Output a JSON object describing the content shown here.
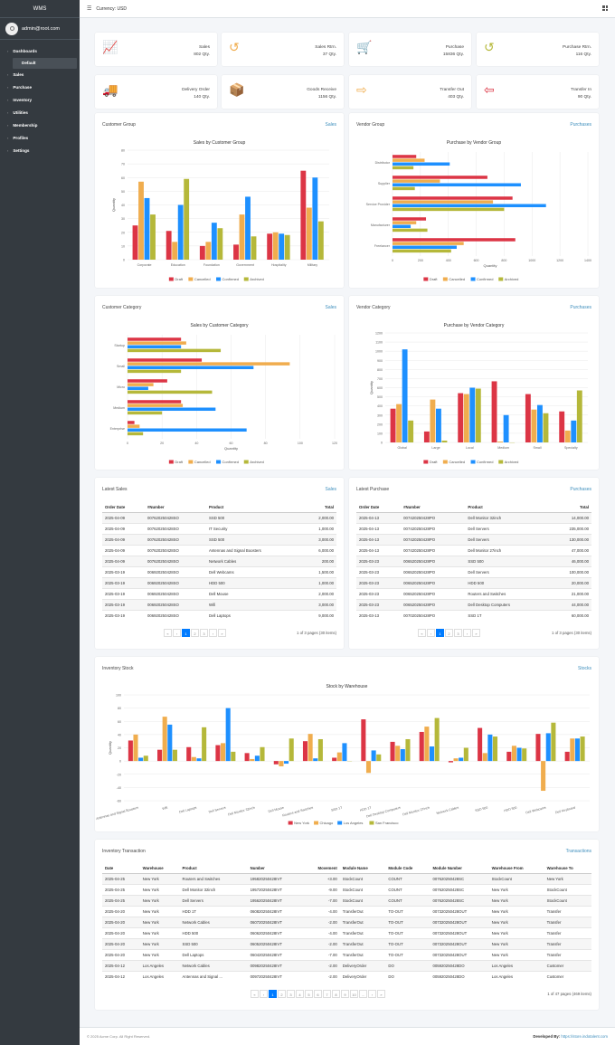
{
  "app": {
    "title": "WMS",
    "user": "admin@root.com"
  },
  "sidebar": {
    "items": [
      {
        "label": "Dashboards",
        "arrow": "›"
      },
      {
        "label": "Default",
        "sub": true
      },
      {
        "label": "Sales",
        "arrow": "‹"
      },
      {
        "label": "Purchase",
        "arrow": "‹"
      },
      {
        "label": "Inventory",
        "arrow": "‹"
      },
      {
        "label": "Utilities",
        "arrow": "‹"
      },
      {
        "label": "Membership",
        "arrow": "‹"
      },
      {
        "label": "Profiles",
        "arrow": "‹"
      },
      {
        "label": "Settings",
        "arrow": "‹"
      }
    ]
  },
  "topbar": {
    "currency": "Currency: USD"
  },
  "stats": [
    {
      "label": "Sales",
      "value": "802 Qty.",
      "icon": "chart-line-icon",
      "color": "#dc3545",
      "glyph": "📈"
    },
    {
      "label": "Sales Rtrn.",
      "value": "37 Qty.",
      "icon": "undo-icon",
      "color": "#f0ad4e",
      "glyph": "↺"
    },
    {
      "label": "Purchase",
      "value": "15836 Qty.",
      "icon": "cart-icon",
      "color": "#007bff",
      "glyph": "🛒"
    },
    {
      "label": "Purchase Rtrn.",
      "value": "116 Qty.",
      "icon": "undo-icon",
      "color": "#b5b83a",
      "glyph": "↺"
    },
    {
      "label": "Delivery Order",
      "value": "140 Qty.",
      "icon": "truck-icon",
      "color": "#b5b83a",
      "glyph": "🚚"
    },
    {
      "label": "Goods Receive",
      "value": "1156 Qty.",
      "icon": "boxes-icon",
      "color": "#007bff",
      "glyph": "📦"
    },
    {
      "label": "Transfer Out",
      "value": "403 Qty.",
      "icon": "sign-out-icon",
      "color": "#f0ad4e",
      "glyph": "⇨"
    },
    {
      "label": "Transfer In",
      "value": "90 Qty.",
      "icon": "sign-in-icon",
      "color": "#dc3545",
      "glyph": "⇦"
    }
  ],
  "colors": {
    "draft": "#dc3545",
    "cancelled": "#f0ad4e",
    "confirmed": "#1e90ff",
    "archived": "#b5b83a",
    "link": "#3c8dbc"
  },
  "panels": {
    "customer_group": {
      "title": "Customer Group",
      "link": "Sales"
    },
    "vendor_group": {
      "title": "Vendor Group",
      "link": "Purchases"
    },
    "customer_category": {
      "title": "Customer Category",
      "link": "Sales"
    },
    "vendor_category": {
      "title": "Vendor Category",
      "link": "Purchases"
    },
    "latest_sales": {
      "title": "Latest Sales",
      "link": "Sales"
    },
    "latest_purchase": {
      "title": "Latest Purchase",
      "link": "Purchases"
    },
    "inventory_stock": {
      "title": "Inventory Stock",
      "link": "Stocks"
    },
    "inventory_transaction": {
      "title": "Inventory Transaction",
      "link": "Transactions"
    }
  },
  "chart_data": [
    {
      "id": "c1",
      "type": "bar",
      "title": "Sales by Customer Group",
      "ylabel": "Quantity",
      "xlabel": "",
      "ylim": [
        0,
        80
      ],
      "yticks": [
        0,
        10,
        20,
        30,
        40,
        50,
        60,
        70,
        80
      ],
      "categories": [
        "Corporate",
        "Education",
        "Foundation",
        "Government",
        "Hospitality",
        "Military"
      ],
      "series": [
        {
          "name": "Draft",
          "values": [
            25,
            21,
            10,
            11,
            19,
            65
          ]
        },
        {
          "name": "Cancelled",
          "values": [
            57,
            13,
            13,
            33,
            20,
            38
          ]
        },
        {
          "name": "Confirmed",
          "values": [
            45,
            40,
            27,
            46,
            19,
            60
          ]
        },
        {
          "name": "Archived",
          "values": [
            33,
            59,
            23,
            17,
            18,
            28
          ]
        }
      ],
      "legend": "bottom"
    },
    {
      "id": "c2",
      "type": "hbar",
      "title": "Purchase by Vendor Group",
      "xlabel": "Quantity",
      "xlim": [
        0,
        1400
      ],
      "xticks": [
        0,
        200,
        400,
        600,
        800,
        1000,
        1200,
        1400
      ],
      "categories": [
        "Distributor",
        "Supplier",
        "Service Provider",
        "Manufacturer",
        "Freelancer"
      ],
      "series": [
        {
          "name": "Draft",
          "values": [
            170,
            680,
            860,
            240,
            880
          ]
        },
        {
          "name": "Cancelled",
          "values": [
            230,
            340,
            720,
            170,
            510
          ]
        },
        {
          "name": "Confirmed",
          "values": [
            410,
            920,
            1100,
            130,
            460
          ]
        },
        {
          "name": "Archived",
          "values": [
            150,
            160,
            800,
            250,
            420
          ]
        }
      ],
      "legend": "bottom"
    },
    {
      "id": "c3",
      "type": "hbar",
      "title": "Sales by Customer Category",
      "xlabel": "Quantity",
      "xlim": [
        0,
        120
      ],
      "xticks": [
        0,
        20,
        40,
        60,
        80,
        100,
        120
      ],
      "categories": [
        "Startup",
        "Small",
        "Micro",
        "Medium",
        "Enterprise"
      ],
      "series": [
        {
          "name": "Draft",
          "values": [
            31,
            43,
            23,
            31,
            4
          ]
        },
        {
          "name": "Cancelled",
          "values": [
            34,
            94,
            15,
            32,
            7
          ]
        },
        {
          "name": "Confirmed",
          "values": [
            31,
            73,
            12,
            51,
            69
          ]
        },
        {
          "name": "Archived",
          "values": [
            54,
            31,
            49,
            20,
            9
          ]
        }
      ],
      "legend": "bottom"
    },
    {
      "id": "c4",
      "type": "bar",
      "title": "Purchase by Vendor Category",
      "ylabel": "Quantity",
      "xlabel": "",
      "ylim": [
        0,
        1200
      ],
      "yticks": [
        0,
        100,
        200,
        300,
        400,
        500,
        600,
        700,
        800,
        900,
        1000,
        1100,
        1200
      ],
      "categories": [
        "Global",
        "Large",
        "Local",
        "Medium",
        "Small",
        "Specialty"
      ],
      "series": [
        {
          "name": "Draft",
          "values": [
            370,
            120,
            540,
            670,
            530,
            340
          ]
        },
        {
          "name": "Cancelled",
          "values": [
            420,
            470,
            530,
            10,
            360,
            130
          ]
        },
        {
          "name": "Confirmed",
          "values": [
            1020,
            370,
            600,
            300,
            410,
            240
          ]
        },
        {
          "name": "Archived",
          "values": [
            240,
            20,
            590,
            0,
            320,
            570
          ]
        }
      ],
      "legend": "bottom"
    },
    {
      "id": "c5",
      "type": "bar",
      "title": "Stock by Warehouse",
      "ylabel": "Quantity",
      "xlabel": "",
      "ylim": [
        -60,
        100
      ],
      "yticks": [
        -60,
        -40,
        -20,
        0,
        20,
        40,
        60,
        80,
        100
      ],
      "categories": [
        "Antennas and Signal Boosters",
        "Wifi",
        "Dell Laptops",
        "Dell Servers",
        "Dell Monitor 32inch",
        "Dell Mouse",
        "Routers and Switches",
        "SSD 1T",
        "HDD 1T",
        "Dell Desktop Computers",
        "Dell Monitor 27inch",
        "Network Cables",
        "SSD 500",
        "HDD 500",
        "Dell Webcams",
        "Dell Keyboard"
      ],
      "series": [
        {
          "name": "New York",
          "values": [
            31,
            17,
            21,
            24,
            12,
            -5,
            30,
            5,
            63,
            29,
            44,
            -2,
            50,
            14,
            41,
            14
          ]
        },
        {
          "name": "Chicago",
          "values": [
            40,
            67,
            6,
            27,
            3,
            -8,
            41,
            13,
            -18,
            23,
            52,
            4,
            12,
            23,
            -45,
            34
          ]
        },
        {
          "name": "Los Angeles",
          "values": [
            5,
            55,
            4,
            80,
            8,
            -4,
            4,
            27,
            16,
            18,
            22,
            5,
            40,
            20,
            42,
            34
          ]
        },
        {
          "name": "San Francisco",
          "values": [
            8,
            17,
            51,
            14,
            21,
            34,
            33,
            0,
            10,
            33,
            65,
            20,
            37,
            19,
            58,
            37
          ]
        }
      ],
      "legend": "bottom"
    }
  ],
  "latest_sales": {
    "headers": [
      "Order Date",
      "#Number",
      "Product",
      "Total"
    ],
    "rows": [
      [
        "2025-04-09",
        "007620250428SO",
        "SSD 500",
        "2,000.00"
      ],
      [
        "2025-04-09",
        "007620250428SO",
        "IT Security",
        "1,000.00"
      ],
      [
        "2025-04-09",
        "007620250428SO",
        "SSD 500",
        "3,000.00"
      ],
      [
        "2025-04-09",
        "007620250428SO",
        "Antennas and Signal Boosters",
        "6,000.00"
      ],
      [
        "2025-04-09",
        "007620250428SO",
        "Network Cables",
        "200.00"
      ],
      [
        "2025-03-19",
        "006920250428SO",
        "Dell Webcams",
        "1,500.00"
      ],
      [
        "2025-03-19",
        "006920250428SO",
        "HDD 500",
        "1,000.00"
      ],
      [
        "2025-03-19",
        "006920250428SO",
        "Dell Mouse",
        "2,000.00"
      ],
      [
        "2025-03-19",
        "006920250428SO",
        "Wifi",
        "3,000.00"
      ],
      [
        "2025-03-19",
        "006920250428SO",
        "Dell Laptops",
        "9,000.00"
      ]
    ],
    "pager": [
      "«",
      "‹",
      "1",
      "2",
      "3",
      "›",
      "»"
    ],
    "info": "1 of 3 pages (30 items)"
  },
  "latest_purchase": {
    "headers": [
      "Order Date",
      "#Number",
      "Product",
      "Total"
    ],
    "rows": [
      [
        "2025-04-13",
        "007420250428PO",
        "Dell Monitor 32inch",
        "14,000.00"
      ],
      [
        "2025-04-13",
        "007420250428PO",
        "Dell Servers",
        "235,000.00"
      ],
      [
        "2025-04-13",
        "007420250428PO",
        "Dell Servers",
        "130,000.00"
      ],
      [
        "2025-04-13",
        "007420250428PO",
        "Dell Monitor 27inch",
        "47,000.00"
      ],
      [
        "2025-03-23",
        "006520250428PO",
        "SSD 500",
        "46,000.00"
      ],
      [
        "2025-03-23",
        "006520250428PO",
        "Dell Servers",
        "100,000.00"
      ],
      [
        "2025-03-23",
        "006520250428PO",
        "HDD 500",
        "20,000.00"
      ],
      [
        "2025-03-23",
        "006520250428PO",
        "Routers and Switches",
        "21,000.00"
      ],
      [
        "2025-03-23",
        "006520250428PO",
        "Dell Desktop Computers",
        "44,000.00"
      ],
      [
        "2025-03-13",
        "007020250428PO",
        "SSD 1T",
        "60,000.00"
      ]
    ],
    "pager": [
      "«",
      "‹",
      "1",
      "2",
      "3",
      "›",
      "»"
    ],
    "info": "1 of 3 pages (30 items)"
  },
  "transactions": {
    "headers": [
      "Date",
      "Warehouse",
      "Product",
      "Number",
      "Movement",
      "Module Name",
      "Module Code",
      "Module Number",
      "Warehouse From",
      "Warehouse To"
    ],
    "rows": [
      [
        "2025-04-25",
        "New York",
        "Routers and Switches",
        "195820250428IVT",
        "+3.00",
        "StockCount",
        "COUNT",
        "007620250428SC",
        "StockCount",
        "New York"
      ],
      [
        "2025-04-25",
        "New York",
        "Dell Monitor 32inch",
        "195720250428IVT",
        "-9.00",
        "StockCount",
        "COUNT",
        "007620250428SC",
        "New York",
        "StockCount"
      ],
      [
        "2025-04-25",
        "New York",
        "Dell Servers",
        "195620250428IVT",
        "-7.00",
        "StockCount",
        "COUNT",
        "007620250428SC",
        "New York",
        "StockCount"
      ],
      [
        "2025-04-20",
        "New York",
        "HDD 1T",
        "060820250428IVT",
        "-4.00",
        "TransferOut",
        "TO-OUT",
        "007320250428OUT",
        "New York",
        "Transfer"
      ],
      [
        "2025-04-20",
        "New York",
        "Network Cables",
        "060720250428IVT",
        "-2.00",
        "TransferOut",
        "TO-OUT",
        "007320250428OUT",
        "New York",
        "Transfer"
      ],
      [
        "2025-04-20",
        "New York",
        "HDD 500",
        "060620250428IVT",
        "-4.00",
        "TransferOut",
        "TO-OUT",
        "007320250428OUT",
        "New York",
        "Transfer"
      ],
      [
        "2025-04-20",
        "New York",
        "SSD 500",
        "060520250428IVT",
        "-2.00",
        "TransferOut",
        "TO-OUT",
        "007320250428OUT",
        "New York",
        "Transfer"
      ],
      [
        "2025-04-20",
        "New York",
        "Dell Laptops",
        "060420250428IVT",
        "-7.00",
        "TransferOut",
        "TO-OUT",
        "007320250428OUT",
        "New York",
        "Transfer"
      ],
      [
        "2025-04-12",
        "Los Angeles",
        "Network Cables",
        "009820250428IVT",
        "-2.00",
        "DeliveryOrder",
        "DO",
        "005920250428DO",
        "Los Angeles",
        "Customer"
      ],
      [
        "2025-04-12",
        "Los Angeles",
        "Antennas and Signal ...",
        "009720250428IVT",
        "-2.00",
        "DeliveryOrder",
        "DO",
        "005920250428DO",
        "Los Angeles",
        "Customer"
      ]
    ],
    "pager": [
      "«",
      "‹",
      "1",
      "2",
      "3",
      "4",
      "5",
      "6",
      "7",
      "8",
      "9",
      "10",
      "...",
      "›",
      "»"
    ],
    "info": "1 of 47 pages (469 items)"
  },
  "footer": {
    "copyright": "© 2025 Acme Corp. All Right Reserved.",
    "dev_label": "Developed By:",
    "dev_link": "https://store.indotalent.com"
  }
}
